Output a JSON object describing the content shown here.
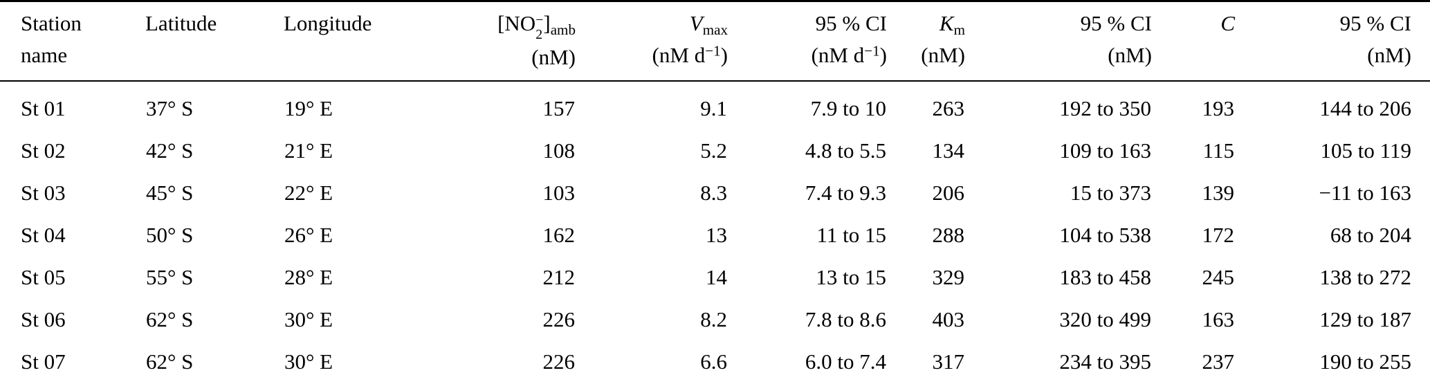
{
  "columns_order": [
    "station",
    "latitude",
    "longitude",
    "no2_amb",
    "vmax",
    "vmax_ci",
    "km",
    "km_ci",
    "c",
    "c_ci"
  ],
  "header": {
    "col_station": {
      "line1": "Station",
      "line2": "name"
    },
    "col_latitude": {
      "line1": "Latitude"
    },
    "col_longitude": {
      "line1": "Longitude"
    },
    "col_no2": {
      "bracket_open": "[NO",
      "sup": "−",
      "sub": "2",
      "bracket_close": "]",
      "subscript_label": "amb",
      "unit": "(nM)"
    },
    "col_vmax": {
      "symbol": "V",
      "symbol_sub": "max",
      "unit_pre": "(nM d",
      "unit_sup": "−1",
      "unit_post": ")"
    },
    "col_vmax_ci": {
      "line1": "95 % CI",
      "unit_pre": "(nM d",
      "unit_sup": "−1",
      "unit_post": ")"
    },
    "col_km": {
      "symbol": "K",
      "symbol_sub": "m",
      "unit": "(nM)"
    },
    "col_km_ci": {
      "line1": "95 % CI",
      "unit": "(nM)"
    },
    "col_c": {
      "symbol": "C"
    },
    "col_c_ci": {
      "line1": "95 % CI",
      "unit": "(nM)"
    }
  },
  "rows": [
    {
      "station": "St 01",
      "latitude": "37° S",
      "longitude": "19° E",
      "no2_amb": "157",
      "vmax": "9.1",
      "vmax_ci": "7.9 to 10",
      "km": "263",
      "km_ci": "192 to 350",
      "c": "193",
      "c_ci": "144 to 206"
    },
    {
      "station": "St 02",
      "latitude": "42° S",
      "longitude": "21° E",
      "no2_amb": "108",
      "vmax": "5.2",
      "vmax_ci": "4.8 to 5.5",
      "km": "134",
      "km_ci": "109 to 163",
      "c": "115",
      "c_ci": "105 to 119"
    },
    {
      "station": "St 03",
      "latitude": "45° S",
      "longitude": "22° E",
      "no2_amb": "103",
      "vmax": "8.3",
      "vmax_ci": "7.4 to 9.3",
      "km": "206",
      "km_ci": "15 to 373",
      "c": "139",
      "c_ci": "−11 to 163"
    },
    {
      "station": "St 04",
      "latitude": "50° S",
      "longitude": "26° E",
      "no2_amb": "162",
      "vmax": "13",
      "vmax_ci": "11 to 15",
      "km": "288",
      "km_ci": "104 to 538",
      "c": "172",
      "c_ci": "68 to 204"
    },
    {
      "station": "St 05",
      "latitude": "55° S",
      "longitude": "28° E",
      "no2_amb": "212",
      "vmax": "14",
      "vmax_ci": "13 to 15",
      "km": "329",
      "km_ci": "183 to 458",
      "c": "245",
      "c_ci": "138 to 272"
    },
    {
      "station": "St 06",
      "latitude": "62° S",
      "longitude": "30° E",
      "no2_amb": "226",
      "vmax": "8.2",
      "vmax_ci": "7.8 to 8.6",
      "km": "403",
      "km_ci": "320 to 499",
      "c": "163",
      "c_ci": "129 to 187"
    },
    {
      "station": "St 07",
      "latitude": "62° S",
      "longitude": "30° E",
      "no2_amb": "226",
      "vmax": "6.6",
      "vmax_ci": "6.0 to 7.4",
      "km": "317",
      "km_ci": "234 to 395",
      "c": "237",
      "c_ci": "190 to 255"
    }
  ]
}
